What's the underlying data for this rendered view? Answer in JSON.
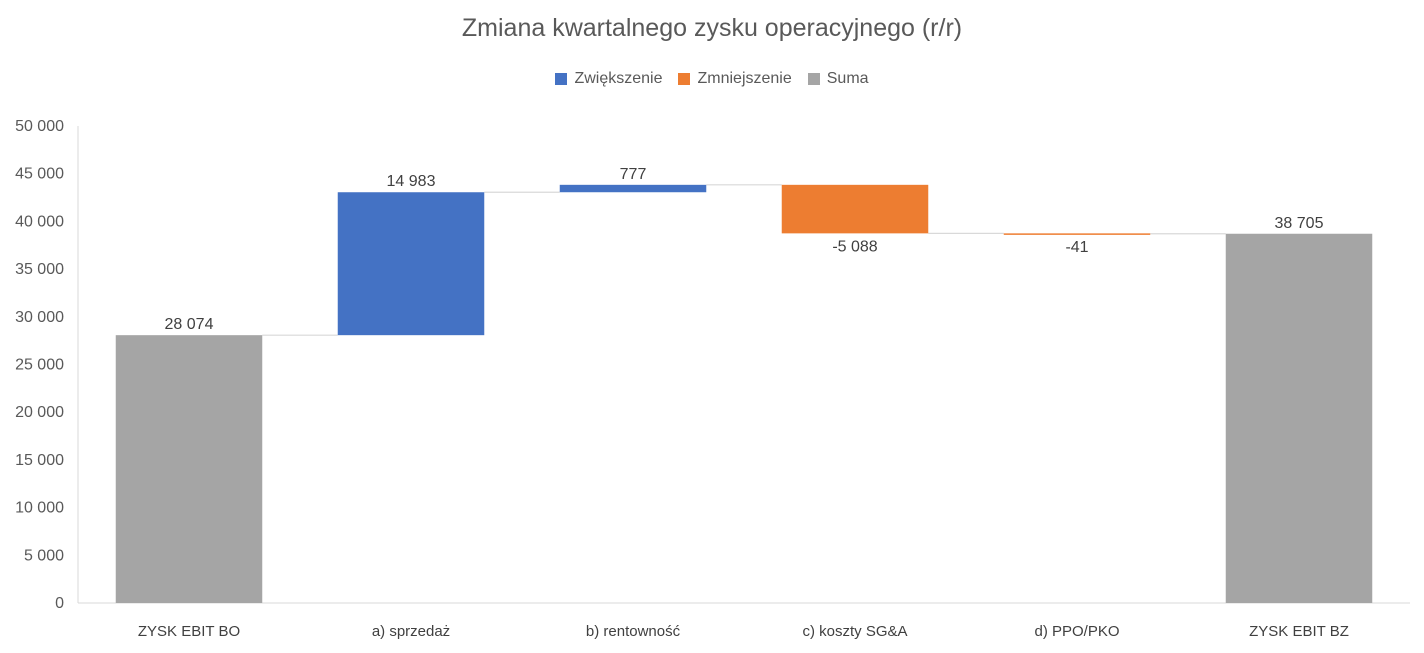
{
  "chart_data": {
    "type": "bar",
    "subtype": "waterfall",
    "title": "Zmiana kwartalnego zysku operacyjnego (r/r)",
    "xlabel": "",
    "ylabel": "",
    "ylim": [
      0,
      50000
    ],
    "yticks": [
      0,
      5000,
      10000,
      15000,
      20000,
      25000,
      30000,
      35000,
      40000,
      45000,
      50000
    ],
    "ytick_labels": [
      "0",
      "5 000",
      "10 000",
      "15 000",
      "20 000",
      "25 000",
      "30 000",
      "35 000",
      "40 000",
      "45 000",
      "50 000"
    ],
    "grid": false,
    "legend_position": "top",
    "legend": [
      {
        "name": "Zwiększenie",
        "color": "#4472C4"
      },
      {
        "name": "Zmniejszenie",
        "color": "#ED7D31"
      },
      {
        "name": "Suma",
        "color": "#A5A5A5"
      }
    ],
    "categories": [
      "ZYSK EBIT BO",
      "a) sprzedaż",
      "b) rentowność",
      "c) koszty SG&A",
      "d) PPO/PKO",
      "ZYSK EBIT BZ"
    ],
    "values": [
      28074,
      14983,
      777,
      -5088,
      -41,
      38705
    ],
    "kinds": [
      "total",
      "increase",
      "increase",
      "decrease",
      "decrease",
      "total"
    ],
    "value_labels": [
      "28 074",
      "14 983",
      "777",
      "-5 088",
      "-41",
      "38 705"
    ]
  }
}
